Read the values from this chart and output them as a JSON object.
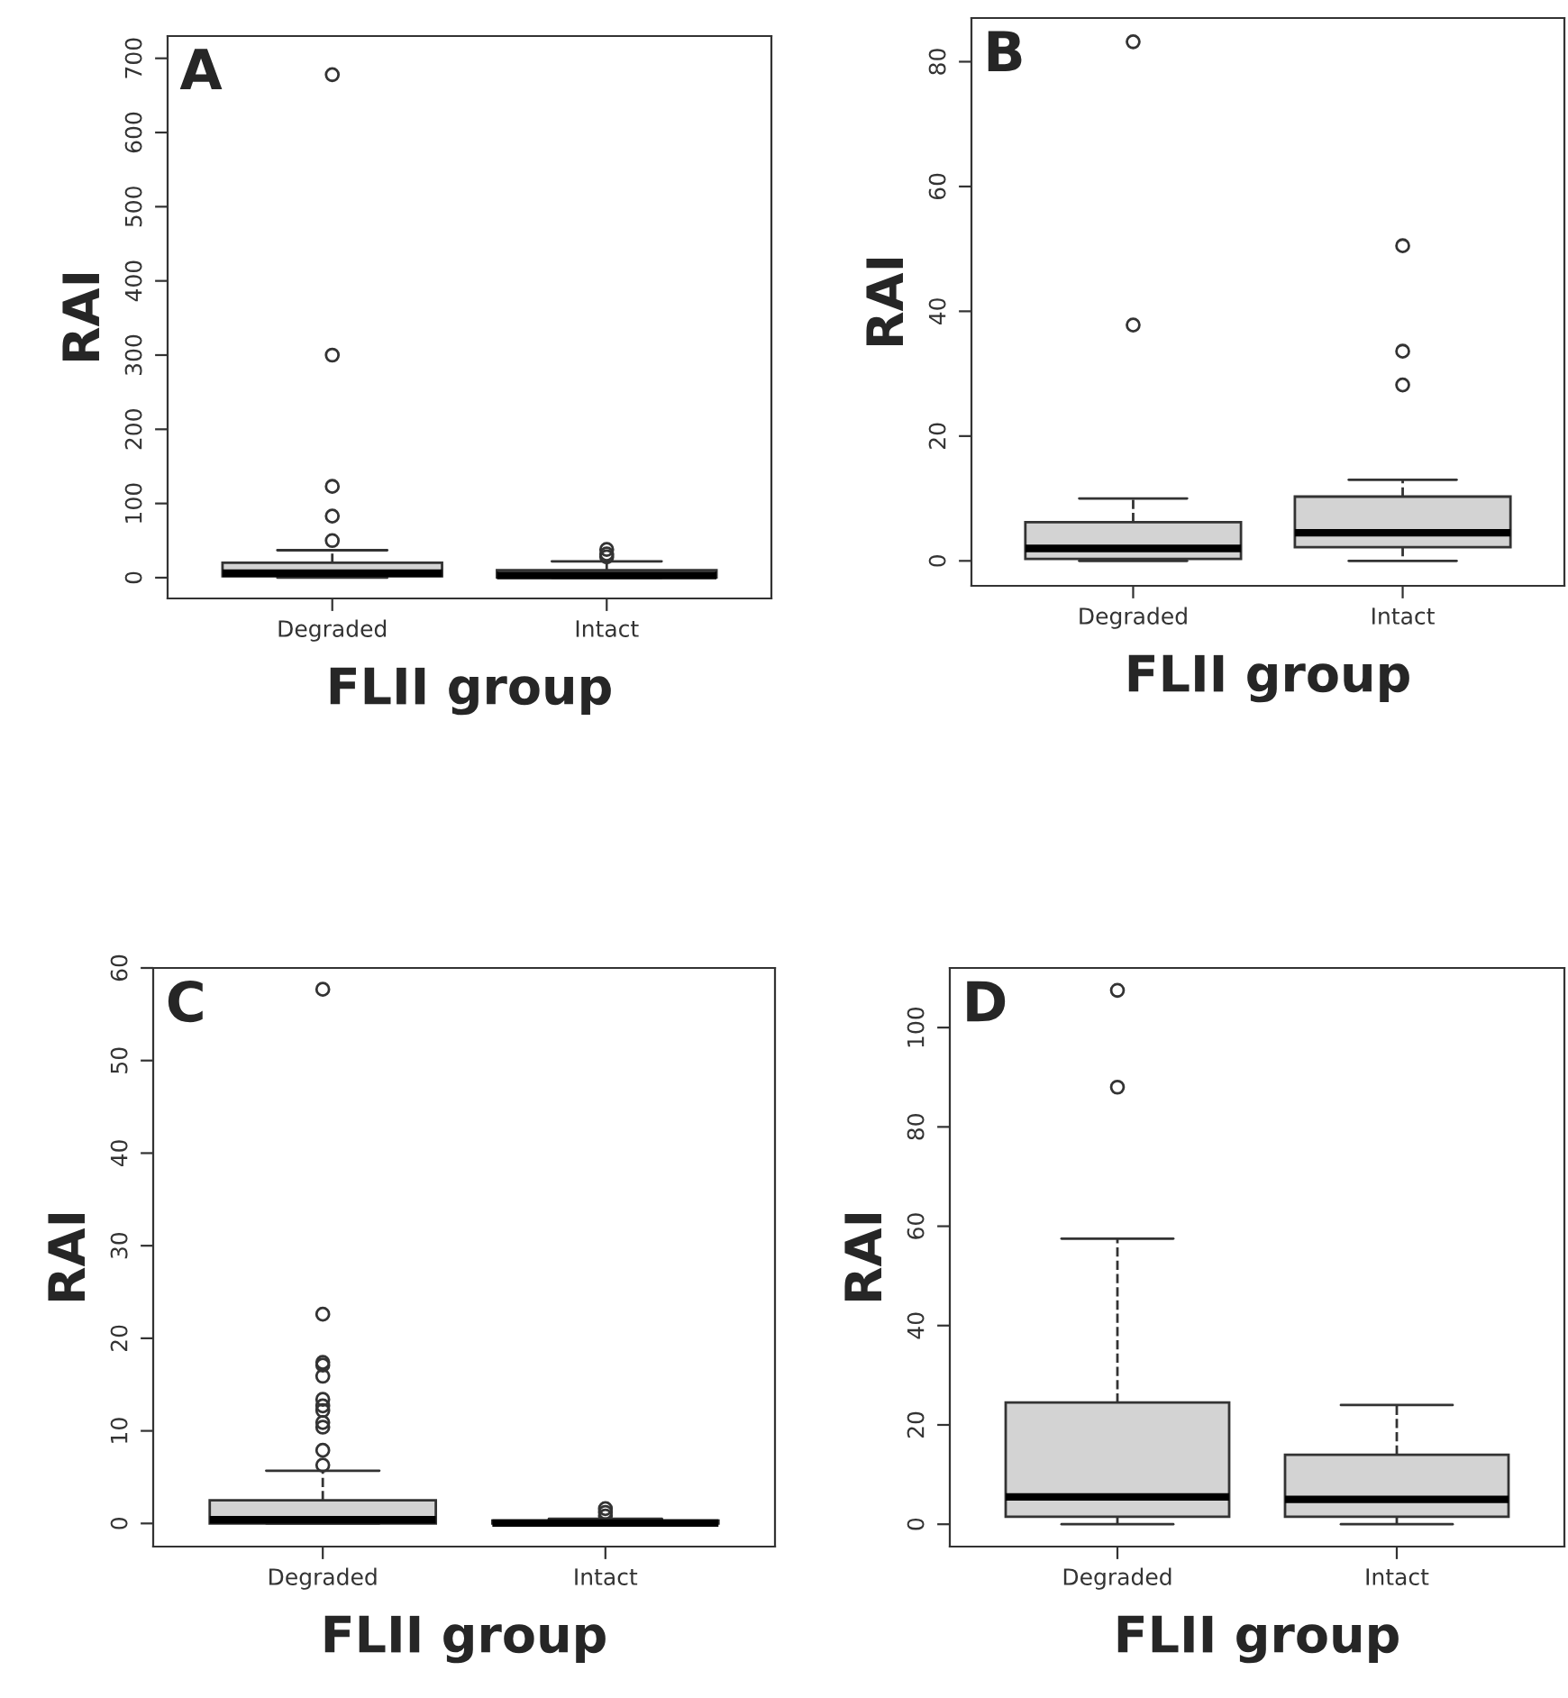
{
  "chart_data": [
    {
      "type": "box",
      "title": "A",
      "xlabel": "FLII group",
      "ylabel": "RAI",
      "categories": [
        "Degraded",
        "Intact"
      ],
      "color": "#d3d3d3",
      "ylim": [
        -28,
        730
      ],
      "yticks": [
        0,
        100,
        200,
        300,
        400,
        500,
        600,
        700
      ],
      "boxes": [
        {
          "low": 0,
          "q1": 2,
          "median": 6,
          "q3": 20,
          "high": 37,
          "outliers": [
            50,
            83,
            123,
            300,
            678
          ]
        },
        {
          "low": 0,
          "q1": 0.5,
          "median": 3,
          "q3": 10,
          "high": 22,
          "outliers": [
            28,
            32,
            38
          ]
        }
      ]
    },
    {
      "type": "box",
      "title": "B",
      "xlabel": "FLII group",
      "ylabel": "RAI",
      "categories": [
        "Degraded",
        "Intact"
      ],
      "color": "#d3d3d3",
      "ylim": [
        -4,
        87
      ],
      "yticks": [
        0,
        20,
        40,
        60,
        80
      ],
      "boxes": [
        {
          "low": 0,
          "q1": 0.3,
          "median": 2,
          "q3": 6.2,
          "high": 10,
          "outliers": [
            37.8,
            83.2
          ]
        },
        {
          "low": 0,
          "q1": 2.2,
          "median": 4.5,
          "q3": 10.3,
          "high": 13,
          "outliers": [
            28.2,
            33.6,
            50.5
          ]
        }
      ]
    },
    {
      "type": "box",
      "title": "C",
      "xlabel": "FLII group",
      "ylabel": "RAI",
      "categories": [
        "Degraded",
        "Intact"
      ],
      "color": "#d3d3d3",
      "ylim": [
        -2.5,
        60
      ],
      "yticks": [
        0,
        10,
        20,
        30,
        40,
        50,
        60
      ],
      "boxes": [
        {
          "low": 0,
          "q1": 0,
          "median": 0.4,
          "q3": 2.5,
          "high": 5.7,
          "outliers": [
            6.3,
            7.9,
            10.4,
            10.9,
            12.2,
            12.7,
            13.4,
            15.9,
            17.1,
            17.4,
            22.6,
            57.7
          ]
        },
        {
          "low": 0,
          "q1": 0,
          "median": 0.05,
          "q3": 0.3,
          "high": 0.5,
          "outliers": [
            0.8,
            1.2,
            1.6
          ]
        }
      ]
    },
    {
      "type": "box",
      "title": "D",
      "xlabel": "FLII group",
      "ylabel": "RAI",
      "categories": [
        "Degraded",
        "Intact"
      ],
      "color": "#d3d3d3",
      "ylim": [
        -4.5,
        112
      ],
      "yticks": [
        0,
        20,
        40,
        60,
        80,
        100
      ],
      "boxes": [
        {
          "low": 0,
          "q1": 1.5,
          "median": 5.5,
          "q3": 24.5,
          "high": 57.5,
          "outliers": [
            88,
            107.5
          ]
        },
        {
          "low": 0,
          "q1": 1.5,
          "median": 5,
          "q3": 14,
          "high": 24
        }
      ]
    }
  ]
}
